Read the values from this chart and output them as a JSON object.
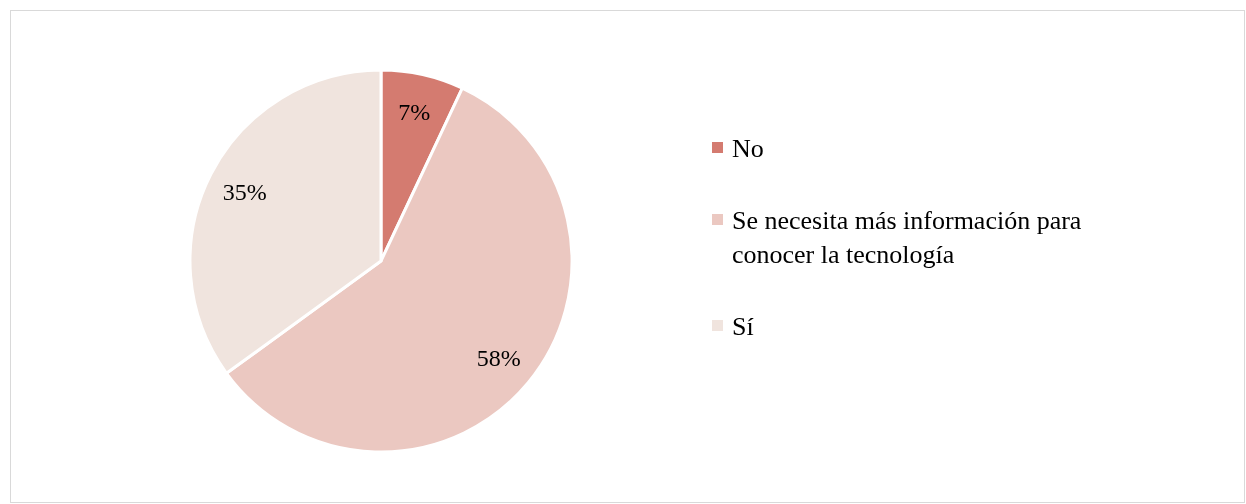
{
  "chart_data": {
    "type": "pie",
    "categories": [
      "No",
      "Se necesita más información para conocer la tecnología",
      "Sí"
    ],
    "values": [
      7,
      58,
      35
    ],
    "colors": [
      "#d47b70",
      "#ebc8c1",
      "#f0e4de"
    ],
    "value_labels": [
      "7%",
      "58%",
      "35%"
    ],
    "legend": "right"
  }
}
